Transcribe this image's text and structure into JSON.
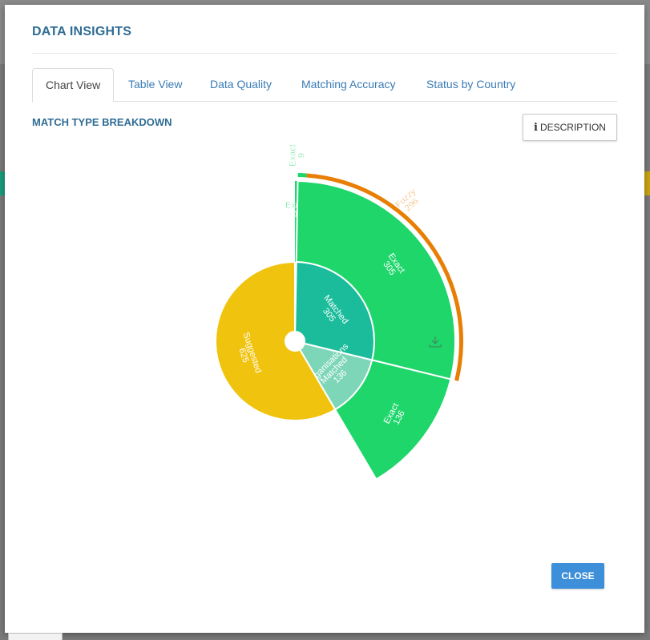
{
  "modal": {
    "title": "DATA INSIGHTS",
    "tabs": [
      {
        "label": "Chart View",
        "active": true
      },
      {
        "label": "Table View",
        "active": false
      },
      {
        "label": "Data Quality",
        "active": false
      },
      {
        "label": "Matching Accuracy",
        "active": false
      },
      {
        "label": "Status by Country",
        "active": false
      }
    ],
    "section_title": "MATCH TYPE BREAKDOWN",
    "description_button": {
      "icon": "info-icon",
      "label": "DESCRIPTION"
    },
    "close_button": "CLOSE",
    "download_icon": "download-icon"
  },
  "colors": {
    "suggested": "#f0c30f",
    "matched": "#1bbc9b",
    "organisations_matched": "#7ed6b9",
    "exact": "#1fd66b",
    "fuzzy": "#e87e04",
    "not_set": "#ffffff",
    "accent": "#3d8fd9"
  },
  "chart_data": {
    "type": "sunburst",
    "title": "MATCH TYPE BREAKDOWN",
    "center_label": "",
    "rings": [
      {
        "name": "Not Set",
        "value": 3,
        "label_lines": [
          "Not",
          "Set",
          "3"
        ]
      },
      {
        "name": "Matched",
        "value": 305,
        "label_lines": [
          "Matched",
          "305"
        ]
      },
      {
        "name": "Organisations Matched",
        "value": 136,
        "label_lines": [
          "Organisations",
          "Matched",
          "136"
        ]
      },
      {
        "name": "Suggested",
        "value": 625,
        "label_lines": [
          "Suggested",
          "625"
        ]
      }
    ],
    "outer": [
      {
        "parent": "Not Set",
        "name": "Exact",
        "value": 1,
        "label_lines": [
          "Exact",
          "1"
        ]
      },
      {
        "parent": "Matched",
        "name": "Exact",
        "value": 305,
        "label_lines": [
          "Exact",
          "305"
        ]
      },
      {
        "parent": "Organisations Matched",
        "name": "Exact",
        "value": 136,
        "label_lines": [
          "Exact",
          "136"
        ]
      }
    ],
    "rim": [
      {
        "name": "Exact",
        "value": 9,
        "label_lines": [
          "Exact",
          "9"
        ]
      },
      {
        "name": "Fuzzy",
        "value": 296,
        "label_lines": [
          "Fuzzy",
          "296"
        ]
      }
    ]
  }
}
